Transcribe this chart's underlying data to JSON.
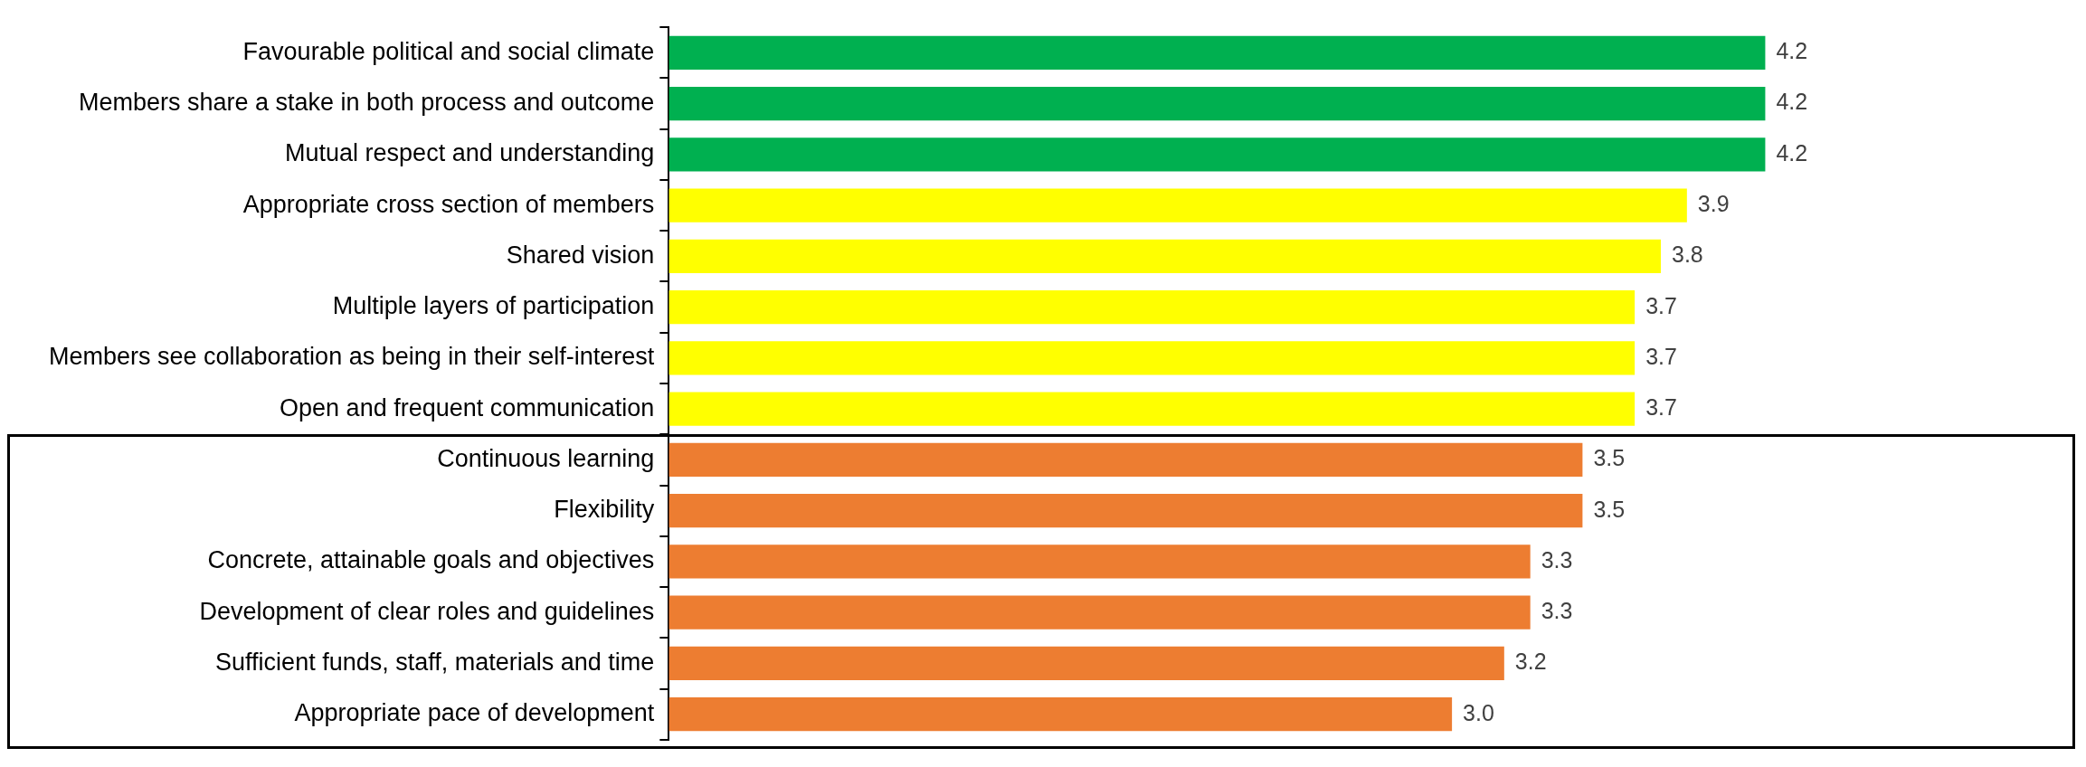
{
  "chart_data": {
    "type": "bar",
    "orientation": "horizontal",
    "grid": false,
    "legend": false,
    "tick_labels": "y",
    "categories": [
      "Favourable political and social climate",
      "Members share a stake in both process and outcome",
      "Mutual respect and understanding",
      "Appropriate cross section of members",
      "Shared vision",
      "Multiple layers of participation",
      "Members see collaboration as being in their self-interest",
      "Open and frequent communication",
      "Continuous learning",
      "Flexibility",
      "Concrete, attainable goals and objectives",
      "Development of clear roles and guidelines",
      "Sufficient funds, staff, materials and time",
      "Appropriate pace of development"
    ],
    "values": [
      4.2,
      4.2,
      4.2,
      3.9,
      3.8,
      3.7,
      3.7,
      3.7,
      3.5,
      3.5,
      3.3,
      3.3,
      3.2,
      3.0
    ],
    "value_labels": [
      "4.2",
      "4.2",
      "4.2",
      "3.9",
      "3.8",
      "3.7",
      "3.7",
      "3.7",
      "3.5",
      "3.5",
      "3.3",
      "3.3",
      "3.2",
      "3.0"
    ],
    "colors": [
      "#00b050",
      "#00b050",
      "#00b050",
      "#ffff00",
      "#ffff00",
      "#ffff00",
      "#ffff00",
      "#ffff00",
      "#ed7d31",
      "#ed7d31",
      "#ed7d31",
      "#ed7d31",
      "#ed7d31",
      "#ed7d31"
    ]
  }
}
